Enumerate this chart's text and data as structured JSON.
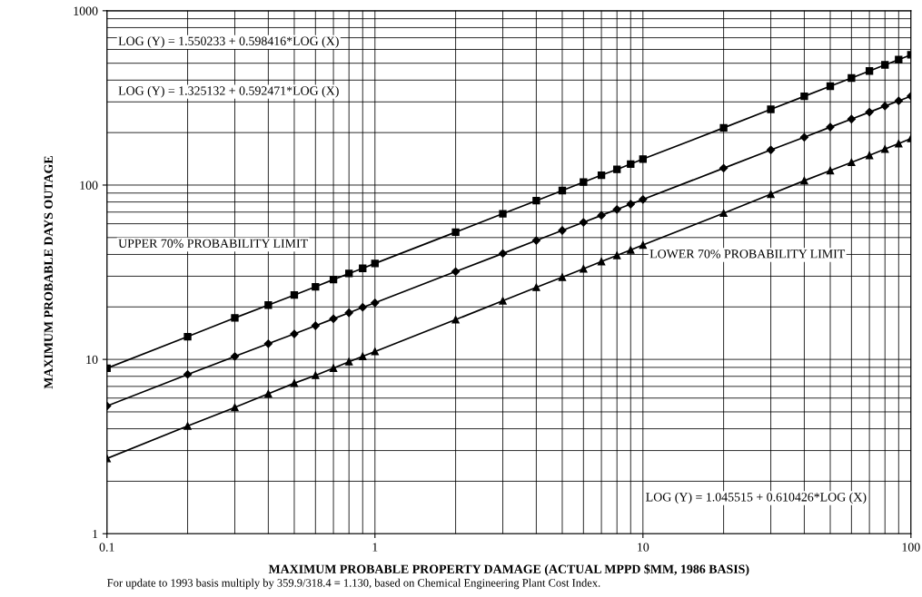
{
  "chart_data": {
    "type": "line",
    "xlabel": "MAXIMUM PROBABLE PROPERTY DAMAGE (ACTUAL MPPD $MM, 1986 BASIS)",
    "ylabel": "MAXIMUM PROBABLE DAYS OUTAGE",
    "x": [
      0.1,
      0.2,
      0.3,
      0.4,
      0.5,
      0.6,
      0.7,
      0.8,
      0.9,
      1,
      2,
      3,
      4,
      5,
      6,
      7,
      8,
      9,
      10,
      20,
      30,
      40,
      50,
      60,
      70,
      80,
      90,
      100
    ],
    "series": [
      {
        "color": "#000000",
        "marker": "square",
        "values": [
          8.9,
          13.5,
          17.3,
          20.5,
          23.4,
          26.1,
          28.7,
          31.1,
          33.3,
          35.5,
          53.7,
          68.5,
          81.4,
          93,
          104,
          114,
          123,
          132,
          141,
          213,
          272,
          323,
          369,
          411,
          451,
          489,
          524,
          559
        ]
      },
      {
        "color": "#000000",
        "marker": "diamond",
        "values": [
          5.4,
          8.2,
          10.4,
          12.3,
          14.0,
          15.6,
          17.1,
          18.5,
          19.9,
          21.1,
          31.9,
          40.5,
          48.1,
          54.9,
          61.1,
          67.0,
          72.5,
          77.7,
          82.7,
          125,
          159,
          188,
          215,
          239,
          262,
          284,
          304,
          324
        ]
      },
      {
        "color": "#000000",
        "marker": "triangle",
        "values": [
          2.7,
          4.15,
          5.3,
          6.35,
          7.3,
          8.1,
          8.9,
          9.7,
          10.4,
          11.1,
          16.9,
          21.7,
          25.9,
          29.6,
          33.1,
          36.4,
          39.5,
          42.4,
          45.3,
          69,
          88.6,
          106,
          121,
          135,
          148,
          161,
          173,
          185
        ]
      }
    ],
    "annotations": [
      "LOG (Y) = 1.550233 + 0.598416*LOG (X)",
      "LOG (Y) = 1.325132 + 0.592471*LOG (X)",
      "UPPER 70% PROBABILITY LIMIT",
      "LOWER 70% PROBABILITY LIMIT",
      "LOG (Y) = 1.045515 + 0.610426*LOG (X)",
      "For update to 1993 basis multiply by 359.9/318.4 = 1.130, based on Chemical Engineering Plant Cost Index."
    ],
    "log": "xy",
    "xlim": [
      0.1,
      100
    ],
    "ylim": [
      1,
      1000
    ],
    "xticks": [
      0.1,
      1,
      10,
      100
    ],
    "yticks": [
      1,
      10,
      100,
      1000
    ],
    "grid": true,
    "line_style": "solid"
  }
}
